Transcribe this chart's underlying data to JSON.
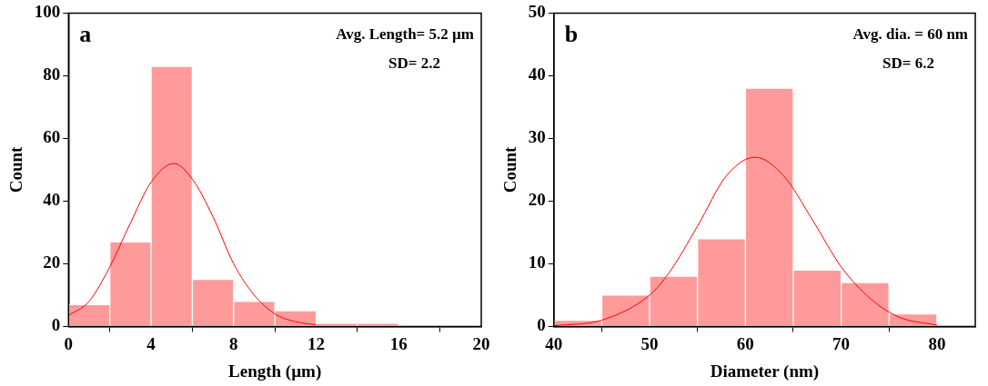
{
  "chart_data": [
    {
      "type": "histogram",
      "xlabel": "Length (µm)",
      "ylabel": "Count",
      "annotations": [
        "a",
        "Avg. Length= 5.2 µm",
        "SD= 2.2"
      ],
      "color": "#ff9a9a",
      "bins": [
        0,
        2,
        4,
        6,
        8,
        10,
        12,
        14,
        16
      ],
      "values": [
        7,
        27,
        83,
        15,
        8,
        5,
        1,
        1
      ],
      "series": [
        {
          "type": "line",
          "color": "#ff0000",
          "x": [
            0,
            1,
            2,
            3,
            4,
            5.1,
            6,
            7,
            8,
            9,
            10,
            11,
            12
          ],
          "values": [
            3.5,
            8,
            19,
            33,
            46,
            52,
            47,
            35,
            20,
            10,
            4,
            1.5,
            0.5
          ]
        }
      ],
      "xlim": [
        0,
        20
      ],
      "xticks": [
        0,
        4,
        8,
        12,
        16,
        20
      ],
      "ylim": [
        0,
        100
      ],
      "yticks": [
        0,
        20,
        40,
        60,
        80,
        100
      ],
      "grid": false,
      "legend": false
    },
    {
      "type": "histogram",
      "xlabel": "Diameter (nm)",
      "ylabel": "Count",
      "annotations": [
        "b",
        "Avg. dia. = 60 nm",
        "SD= 6.2"
      ],
      "color": "#ff9a9a",
      "bins": [
        40,
        45,
        50,
        55,
        60,
        65,
        70,
        75,
        80
      ],
      "values": [
        1,
        5,
        8,
        14,
        38,
        9,
        7,
        2
      ],
      "series": [
        {
          "type": "line",
          "color": "#ff0000",
          "x": [
            40,
            45,
            50,
            52,
            55,
            58,
            61,
            64,
            67,
            70,
            73,
            76,
            80
          ],
          "values": [
            0.1,
            1,
            5,
            8.5,
            16,
            24,
            27,
            24,
            17,
            9.5,
            4.5,
            1.5,
            0.2
          ]
        }
      ],
      "xlim": [
        40,
        84
      ],
      "xticks": [
        40,
        50,
        60,
        70,
        80
      ],
      "ylim": [
        0,
        50
      ],
      "yticks": [
        0,
        10,
        20,
        30,
        40,
        50
      ],
      "grid": false,
      "legend": false
    }
  ]
}
